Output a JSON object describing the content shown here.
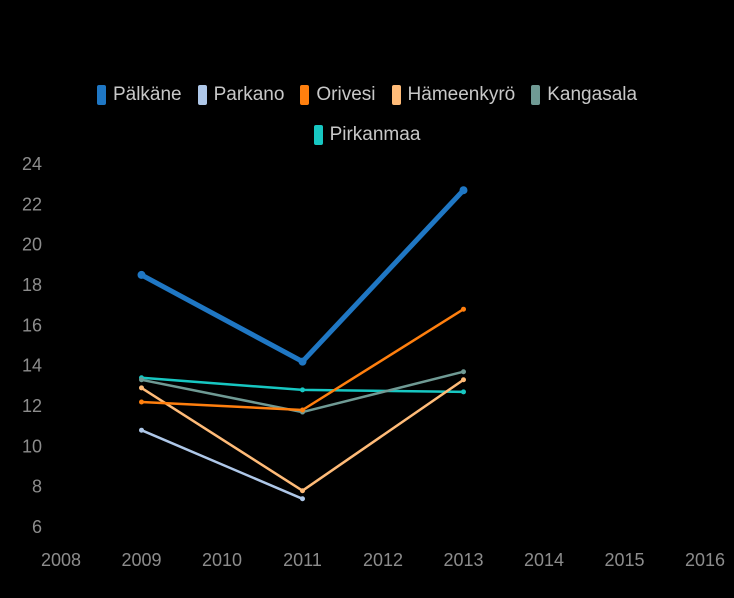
{
  "chart_data": {
    "type": "line",
    "title": "",
    "xlabel": "",
    "ylabel": "",
    "xlim": [
      2008,
      2016
    ],
    "ylim": [
      6,
      24
    ],
    "x_ticks": [
      "2008",
      "2009",
      "2010",
      "2011",
      "2012",
      "2013",
      "2014",
      "2015",
      "2016"
    ],
    "y_ticks": [
      "6",
      "8",
      "10",
      "12",
      "14",
      "16",
      "18",
      "20",
      "22",
      "24"
    ],
    "grid": false,
    "legend_position": "top",
    "series": [
      {
        "name": "Pälkäne",
        "color": "#1f77c4",
        "x": [
          2009,
          2011,
          2013
        ],
        "y": [
          18.5,
          14.2,
          22.7
        ]
      },
      {
        "name": "Parkano",
        "color": "#aec7e8",
        "x": [
          2009,
          2011
        ],
        "y": [
          10.8,
          7.4
        ]
      },
      {
        "name": "Orivesi",
        "color": "#ff7f0e",
        "x": [
          2009,
          2011,
          2013
        ],
        "y": [
          12.2,
          11.8,
          16.8
        ]
      },
      {
        "name": "Hämeenkyrö",
        "color": "#ffbb78",
        "x": [
          2009,
          2011,
          2013
        ],
        "y": [
          12.9,
          7.8,
          13.3
        ]
      },
      {
        "name": "Kangasala",
        "color": "#6f9a94",
        "x": [
          2009,
          2011,
          2013
        ],
        "y": [
          13.3,
          11.7,
          13.7
        ]
      },
      {
        "name": "Pirkanmaa",
        "color": "#17c7c2",
        "x": [
          2009,
          2011,
          2013
        ],
        "y": [
          13.4,
          12.8,
          12.7
        ]
      }
    ]
  }
}
